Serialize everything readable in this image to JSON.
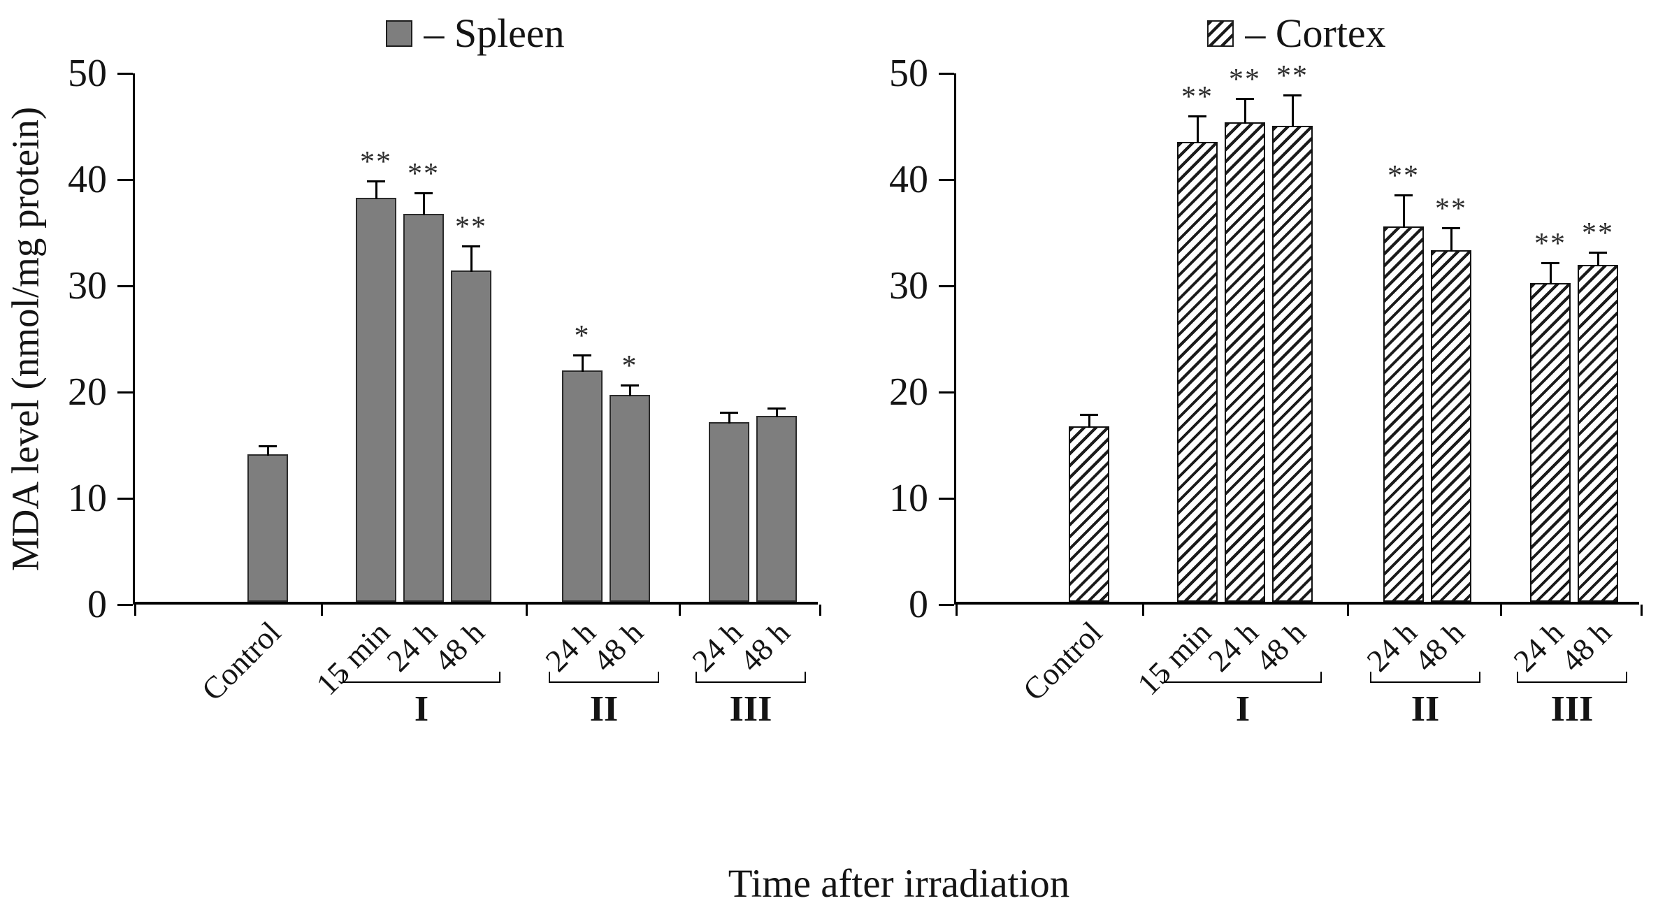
{
  "figure": {
    "ylabel": "MDA level (nmol/mg protein)",
    "xlabel": "Time after irradiation"
  },
  "chart_data": [
    {
      "type": "bar",
      "series_name": "Spleen",
      "legend_label": "– Spleen",
      "bar_style": "solid",
      "bar_color": "#7e7e7e",
      "ylabel": "MDA level (nmol/mg protein)",
      "ylim": [
        0,
        50
      ],
      "yticks": [
        0,
        10,
        20,
        30,
        40,
        50
      ],
      "categories": [
        "Control",
        "15 min",
        "24 h",
        "48 h",
        "24 h",
        "48 h",
        "24 h",
        "48 h"
      ],
      "values": [
        13.9,
        38.0,
        36.5,
        31.2,
        21.8,
        19.5,
        16.9,
        17.5
      ],
      "errors": [
        0.8,
        1.6,
        2.0,
        2.3,
        1.4,
        0.9,
        0.9,
        0.7
      ],
      "significance": [
        "",
        "**",
        "**",
        "**",
        "*",
        "*",
        "",
        ""
      ],
      "groups": [
        {
          "label": "I",
          "indices": [
            1,
            2,
            3
          ]
        },
        {
          "label": "II",
          "indices": [
            4,
            5
          ]
        },
        {
          "label": "III",
          "indices": [
            6,
            7
          ]
        }
      ]
    },
    {
      "type": "bar",
      "series_name": "Cortex",
      "legend_label": "– Cortex",
      "bar_style": "hatched",
      "hatch_foreground": "#1a1a1a",
      "hatch_background": "#ffffff",
      "ylim": [
        0,
        50
      ],
      "yticks": [
        0,
        10,
        20,
        30,
        40,
        50
      ],
      "categories": [
        "Control",
        "15 min",
        "24 h",
        "48 h",
        "24 h",
        "48 h",
        "24 h",
        "48 h"
      ],
      "values": [
        16.5,
        43.3,
        45.1,
        44.8,
        35.3,
        33.1,
        30.0,
        31.7
      ],
      "errors": [
        1.1,
        2.4,
        2.3,
        2.9,
        3.0,
        2.1,
        1.9,
        1.2
      ],
      "significance": [
        "",
        "**",
        "**",
        "**",
        "**",
        "**",
        "**",
        "**"
      ],
      "groups": [
        {
          "label": "I",
          "indices": [
            1,
            2,
            3
          ]
        },
        {
          "label": "II",
          "indices": [
            4,
            5
          ]
        },
        {
          "label": "III",
          "indices": [
            6,
            7
          ]
        }
      ]
    }
  ]
}
